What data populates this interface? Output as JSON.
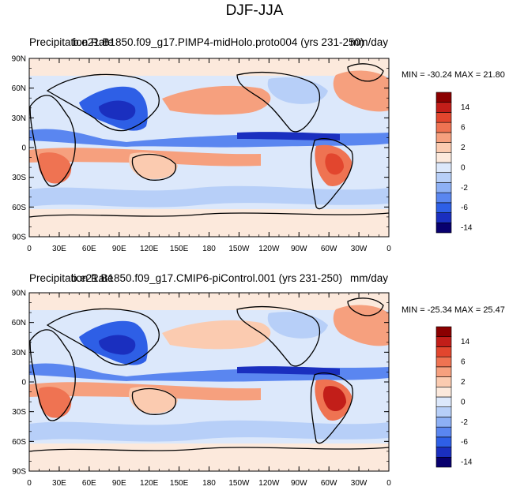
{
  "main_title": "DJF-JJA",
  "colors": {
    "levels": [
      "#08006e",
      "#1a2fbf",
      "#2e5fe6",
      "#5a86f0",
      "#8db0f5",
      "#b7cff8",
      "#dce8fb",
      "#fce9dc",
      "#fbcbb0",
      "#f6a07e",
      "#ef7352",
      "#e2462e",
      "#c21e19",
      "#8b0000"
    ]
  },
  "colorbar_labels": [
    "14",
    "6",
    "2",
    "0",
    "-2",
    "-6",
    "-14"
  ],
  "chart_data": [
    {
      "type": "heatmap",
      "left_title": "Precipitation Rate",
      "center_title": "b.e21.B1850.f09_g17.PIMP4-midHolo.proto004 (yrs 231-250)",
      "right_title": "mm/day",
      "min_max": "MIN = -30.24  MAX =  21.80",
      "x_ticks": [
        "0",
        "30E",
        "60E",
        "90E",
        "120E",
        "150E",
        "180",
        "150W",
        "120W",
        "90W",
        "60W",
        "30W",
        "0"
      ],
      "y_ticks": [
        "90N",
        "60N",
        "30N",
        "0",
        "30S",
        "60S",
        "90S"
      ],
      "xlim": [
        0,
        360
      ],
      "ylim": [
        -90,
        90
      ],
      "contour_levels": [
        -14,
        -6,
        -2,
        0,
        2,
        6,
        14
      ]
    },
    {
      "type": "heatmap",
      "left_title": "Precipitation Rate",
      "center_title": "b.e21.B1850.f09_g17.CMIP6-piControl.001 (yrs 231-250)",
      "right_title": "mm/day",
      "min_max": "MIN = -25.34  MAX =  25.47",
      "x_ticks": [
        "0",
        "30E",
        "60E",
        "90E",
        "120E",
        "150E",
        "180",
        "150W",
        "120W",
        "90W",
        "60W",
        "30W",
        "0"
      ],
      "y_ticks": [
        "90N",
        "60N",
        "30N",
        "0",
        "30S",
        "60S",
        "90S"
      ],
      "xlim": [
        0,
        360
      ],
      "ylim": [
        -90,
        90
      ],
      "contour_levels": [
        -14,
        -6,
        -2,
        0,
        2,
        6,
        14
      ]
    }
  ]
}
